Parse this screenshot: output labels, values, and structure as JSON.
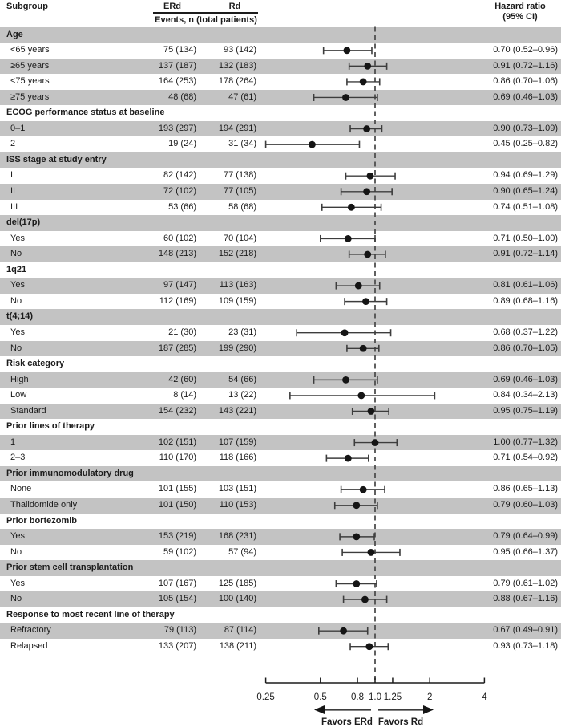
{
  "header": {
    "subgroup": "Subgroup",
    "erd": "ERd",
    "rd": "Rd",
    "events_caption": "Events, n (total patients)",
    "hazard_line1": "Hazard ratio",
    "hazard_line2": "(95% CI)"
  },
  "colors": {
    "band_gray": "#c3c3c3",
    "text": "#1c1c1c",
    "ci_line": "#3d3d3d",
    "marker": "#151515",
    "dashed_line": "#4f4f4f",
    "axis": "#1c1c1c"
  },
  "chart_data": {
    "type": "forest",
    "x_scale": "log",
    "reference_line": 1.0,
    "xlim": [
      0.25,
      4
    ],
    "ticks": [
      {
        "value": 0.25,
        "label": "0.25"
      },
      {
        "value": 0.5,
        "label": "0.5"
      },
      {
        "value": 0.8,
        "label": "0.8"
      },
      {
        "value": 1.0,
        "label": "1.0"
      },
      {
        "value": 1.25,
        "label": "1.25"
      },
      {
        "value": 2,
        "label": "2"
      },
      {
        "value": 4,
        "label": "4"
      }
    ],
    "favors_left": "Favors ERd",
    "favors_right": "Favors Rd",
    "rows": [
      {
        "kind": "section",
        "label": "Age"
      },
      {
        "kind": "item",
        "label": "<65 years",
        "erd": "75 (134)",
        "rd": "93 (142)",
        "hr": 0.7,
        "lo": 0.52,
        "hi": 0.96,
        "hr_text": "0.70 (0.52–0.96)"
      },
      {
        "kind": "item",
        "label": "≥65 years",
        "erd": "137 (187)",
        "rd": "132 (183)",
        "hr": 0.91,
        "lo": 0.72,
        "hi": 1.16,
        "hr_text": "0.91 (0.72–1.16)"
      },
      {
        "kind": "item",
        "label": "<75 years",
        "erd": "164 (253)",
        "rd": "178 (264)",
        "hr": 0.86,
        "lo": 0.7,
        "hi": 1.06,
        "hr_text": "0.86 (0.70–1.06)"
      },
      {
        "kind": "item",
        "label": "≥75 years",
        "erd": "48 (68)",
        "rd": "47 (61)",
        "hr": 0.69,
        "lo": 0.46,
        "hi": 1.03,
        "hr_text": "0.69 (0.46–1.03)"
      },
      {
        "kind": "section",
        "label": "ECOG performance status at baseline"
      },
      {
        "kind": "item",
        "label": "0–1",
        "erd": "193 (297)",
        "rd": "194 (291)",
        "hr": 0.9,
        "lo": 0.73,
        "hi": 1.09,
        "hr_text": "0.90 (0.73–1.09)"
      },
      {
        "kind": "item",
        "label": "2",
        "erd": "19 (24)",
        "rd": "31 (34)",
        "hr": 0.45,
        "lo": 0.25,
        "hi": 0.82,
        "hr_text": "0.45 (0.25–0.82)"
      },
      {
        "kind": "section",
        "label": "ISS stage at study entry"
      },
      {
        "kind": "item",
        "label": "I",
        "erd": "82 (142)",
        "rd": "77 (138)",
        "hr": 0.94,
        "lo": 0.69,
        "hi": 1.29,
        "hr_text": "0.94 (0.69–1.29)"
      },
      {
        "kind": "item",
        "label": "II",
        "erd": "72 (102)",
        "rd": "77 (105)",
        "hr": 0.9,
        "lo": 0.65,
        "hi": 1.24,
        "hr_text": "0.90 (0.65–1.24)"
      },
      {
        "kind": "item",
        "label": "III",
        "erd": "53 (66)",
        "rd": "58 (68)",
        "hr": 0.74,
        "lo": 0.51,
        "hi": 1.08,
        "hr_text": "0.74 (0.51–1.08)"
      },
      {
        "kind": "section",
        "label": "del(17p)"
      },
      {
        "kind": "item",
        "label": "Yes",
        "erd": "60 (102)",
        "rd": "70 (104)",
        "hr": 0.71,
        "lo": 0.5,
        "hi": 1.0,
        "hr_text": "0.71 (0.50–1.00)"
      },
      {
        "kind": "item",
        "label": "No",
        "erd": "148 (213)",
        "rd": "152 (218)",
        "hr": 0.91,
        "lo": 0.72,
        "hi": 1.14,
        "hr_text": "0.91 (0.72–1.14)"
      },
      {
        "kind": "section",
        "label": "1q21"
      },
      {
        "kind": "item",
        "label": "Yes",
        "erd": "97 (147)",
        "rd": "113 (163)",
        "hr": 0.81,
        "lo": 0.61,
        "hi": 1.06,
        "hr_text": "0.81 (0.61–1.06)"
      },
      {
        "kind": "item",
        "label": "No",
        "erd": "112 (169)",
        "rd": "109 (159)",
        "hr": 0.89,
        "lo": 0.68,
        "hi": 1.16,
        "hr_text": "0.89 (0.68–1.16)"
      },
      {
        "kind": "section",
        "label": "t(4;14)"
      },
      {
        "kind": "item",
        "label": "Yes",
        "erd": "21 (30)",
        "rd": "23 (31)",
        "hr": 0.68,
        "lo": 0.37,
        "hi": 1.22,
        "hr_text": "0.68 (0.37–1.22)"
      },
      {
        "kind": "item",
        "label": "No",
        "erd": "187 (285)",
        "rd": "199 (290)",
        "hr": 0.86,
        "lo": 0.7,
        "hi": 1.05,
        "hr_text": "0.86 (0.70–1.05)"
      },
      {
        "kind": "section",
        "label": "Risk category"
      },
      {
        "kind": "item",
        "label": "High",
        "erd": "42 (60)",
        "rd": "54 (66)",
        "hr": 0.69,
        "lo": 0.46,
        "hi": 1.03,
        "hr_text": "0.69 (0.46–1.03)"
      },
      {
        "kind": "item",
        "label": "Low",
        "erd": "8 (14)",
        "rd": "13 (22)",
        "hr": 0.84,
        "lo": 0.34,
        "hi": 2.13,
        "hr_text": "0.84 (0.34–2.13)"
      },
      {
        "kind": "item",
        "label": "Standard",
        "erd": "154 (232)",
        "rd": "143 (221)",
        "hr": 0.95,
        "lo": 0.75,
        "hi": 1.19,
        "hr_text": "0.95 (0.75–1.19)"
      },
      {
        "kind": "section",
        "label": "Prior lines of therapy"
      },
      {
        "kind": "item",
        "label": "1",
        "erd": "102 (151)",
        "rd": "107 (159)",
        "hr": 1.0,
        "lo": 0.77,
        "hi": 1.32,
        "hr_text": "1.00 (0.77–1.32)"
      },
      {
        "kind": "item",
        "label": "2–3",
        "erd": "110 (170)",
        "rd": "118 (166)",
        "hr": 0.71,
        "lo": 0.54,
        "hi": 0.92,
        "hr_text": "0.71 (0.54–0.92)"
      },
      {
        "kind": "section",
        "label": "Prior immunomodulatory drug"
      },
      {
        "kind": "item",
        "label": "None",
        "erd": "101 (155)",
        "rd": "103 (151)",
        "hr": 0.86,
        "lo": 0.65,
        "hi": 1.13,
        "hr_text": "0.86 (0.65–1.13)"
      },
      {
        "kind": "item",
        "label": "Thalidomide only",
        "erd": "101 (150)",
        "rd": "110 (153)",
        "hr": 0.79,
        "lo": 0.6,
        "hi": 1.03,
        "hr_text": "0.79 (0.60–1.03)"
      },
      {
        "kind": "section",
        "label": "Prior bortezomib"
      },
      {
        "kind": "item",
        "label": "Yes",
        "erd": "153 (219)",
        "rd": "168 (231)",
        "hr": 0.79,
        "lo": 0.64,
        "hi": 0.99,
        "hr_text": "0.79 (0.64–0.99)"
      },
      {
        "kind": "item",
        "label": "No",
        "erd": "59 (102)",
        "rd": "57 (94)",
        "hr": 0.95,
        "lo": 0.66,
        "hi": 1.37,
        "hr_text": "0.95 (0.66–1.37)"
      },
      {
        "kind": "section",
        "label": "Prior stem cell transplantation"
      },
      {
        "kind": "item",
        "label": "Yes",
        "erd": "107 (167)",
        "rd": "125 (185)",
        "hr": 0.79,
        "lo": 0.61,
        "hi": 1.02,
        "hr_text": "0.79 (0.61–1.02)"
      },
      {
        "kind": "item",
        "label": "No",
        "erd": "105 (154)",
        "rd": "100 (140)",
        "hr": 0.88,
        "lo": 0.67,
        "hi": 1.16,
        "hr_text": "0.88 (0.67–1.16)"
      },
      {
        "kind": "section",
        "label": "Response to most recent line of therapy"
      },
      {
        "kind": "item",
        "label": "Refractory",
        "erd": "79 (113)",
        "rd": "87 (114)",
        "hr": 0.67,
        "lo": 0.49,
        "hi": 0.91,
        "hr_text": "0.67 (0.49–0.91)"
      },
      {
        "kind": "item",
        "label": "Relapsed",
        "erd": "133 (207)",
        "rd": "138 (211)",
        "hr": 0.93,
        "lo": 0.73,
        "hi": 1.18,
        "hr_text": "0.93 (0.73–1.18)"
      }
    ]
  }
}
